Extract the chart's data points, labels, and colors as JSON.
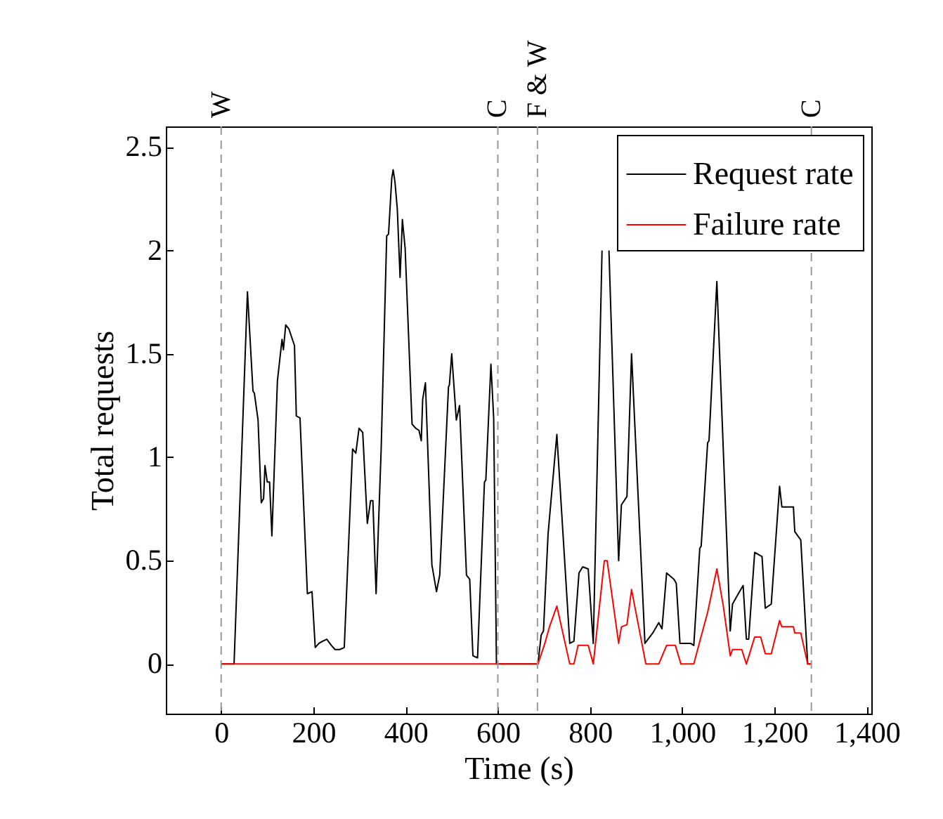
{
  "chart_data": {
    "type": "line",
    "xlabel": "Time (s)",
    "ylabel": "Total requests",
    "xlim": [
      -120,
      1410
    ],
    "ylim": [
      -0.24,
      2.6
    ],
    "xticks": [
      0,
      200,
      400,
      600,
      800,
      {
        "value": 1000,
        "label": "1,000"
      },
      {
        "value": 1200,
        "label": "1,200"
      },
      {
        "value": 1400,
        "label": "1,400"
      }
    ],
    "yticks": [
      0,
      0.5,
      1,
      1.5,
      2,
      2.5
    ],
    "grid": false,
    "legend": "top right",
    "marker": "none",
    "line_style": "solid",
    "series": [
      {
        "name": "Request rate",
        "color": "#000000",
        "x": [
          0,
          28,
          57,
          69,
          72,
          80,
          87,
          92,
          95,
          100,
          105,
          110,
          122,
          132,
          135,
          140,
          147,
          159,
          163,
          171,
          187,
          197,
          204,
          212,
          220,
          229,
          239,
          247,
          257,
          267,
          285,
          292,
          299,
          307,
          317,
          324,
          329,
          336,
          347,
          359,
          363,
          370,
          373,
          377,
          382,
          388,
          393,
          399,
          414,
          422,
          429,
          434,
          437,
          443,
          457,
          467,
          474,
          493,
          495,
          500,
          510,
          517,
          532,
          539,
          546,
          556,
          571,
          574,
          585,
          591,
          597,
          687,
          694,
          699,
          709,
          728,
          756,
          765,
          776,
          784,
          796,
          807,
          826,
          834,
          841,
          862,
          868,
          880,
          890,
          919,
          936,
          949,
          956,
          966,
          982,
          987,
          995,
          1018,
          1025,
          1038,
          1041,
          1055,
          1058,
          1075,
          1104,
          1109,
          1119,
          1132,
          1139,
          1144,
          1157,
          1173,
          1180,
          1193,
          1211,
          1216,
          1241,
          1244,
          1257,
          1272,
          1280
        ],
        "values": [
          0,
          0,
          1.8,
          1.32,
          1.31,
          1.18,
          0.78,
          0.8,
          0.96,
          0.88,
          0.88,
          0.62,
          1.37,
          1.57,
          1.52,
          1.64,
          1.62,
          1.54,
          1.2,
          1.19,
          0.34,
          0.35,
          0.08,
          0.1,
          0.11,
          0.12,
          0.09,
          0.07,
          0.07,
          0.08,
          1.04,
          1.02,
          1.14,
          1.12,
          0.68,
          0.79,
          0.79,
          0.34,
          1.04,
          2.07,
          2.08,
          2.35,
          2.39,
          2.33,
          2.2,
          1.87,
          2.15,
          2.01,
          1.16,
          1.14,
          1.13,
          1.08,
          1.28,
          1.36,
          0.48,
          0.35,
          0.43,
          1.34,
          1.35,
          1.5,
          1.18,
          1.25,
          0.43,
          0.41,
          0.04,
          0.03,
          0.88,
          0.89,
          1.45,
          1.19,
          0,
          0,
          0.14,
          0.16,
          0.63,
          1.11,
          0.1,
          0.11,
          0.44,
          0.47,
          0.46,
          0.1,
          2.0,
          null,
          2.0,
          0.5,
          0.77,
          0.81,
          1.5,
          0.1,
          0.15,
          0.2,
          0.17,
          0.44,
          0.41,
          0.39,
          0.1,
          0.1,
          0.09,
          0.56,
          0.57,
          1.07,
          1.08,
          1.85,
          0.16,
          0.29,
          0.33,
          0.38,
          0.12,
          0.12,
          0.54,
          0.52,
          0.27,
          0.29,
          0.86,
          0.76,
          0.76,
          0.64,
          0.6,
          0,
          0
        ]
      },
      {
        "name": "Failure rate",
        "color": "#ff0000",
        "x": [
          0,
          687,
          702,
          712,
          728,
          756,
          765,
          774,
          796,
          807,
          831,
          837,
          862,
          868,
          880,
          890,
          921,
          949,
          966,
          985,
          997,
          1025,
          1038,
          1055,
          1075,
          1089,
          1104,
          1109,
          1129,
          1139,
          1157,
          1170,
          1180,
          1193,
          1211,
          1216,
          1241,
          1244,
          1257,
          1272,
          1280
        ],
        "values": [
          0,
          0,
          0.1,
          0.18,
          0.28,
          0,
          0,
          0.09,
          0.09,
          0,
          0.5,
          0.5,
          0.1,
          0.18,
          0.19,
          0.36,
          0,
          0,
          0.09,
          0.09,
          0,
          0,
          0.11,
          0.25,
          0.46,
          0.28,
          0.04,
          0.07,
          0.07,
          0,
          0.13,
          0.13,
          0.05,
          0.05,
          0.21,
          0.18,
          0.18,
          0.15,
          0.15,
          0,
          0
        ]
      }
    ],
    "ref_lines": [
      {
        "axis": "x",
        "value": 0,
        "label": "W",
        "color": "#999999",
        "line_style": "dashed"
      },
      {
        "axis": "x",
        "value": 600,
        "label": "C",
        "color": "#999999",
        "line_style": "dashed"
      },
      {
        "axis": "x",
        "value": 686,
        "label": "F & W",
        "color": "#999999",
        "line_style": "dashed"
      },
      {
        "axis": "x",
        "value": 1280,
        "label": "C",
        "color": "#999999",
        "line_style": "dashed"
      }
    ]
  }
}
